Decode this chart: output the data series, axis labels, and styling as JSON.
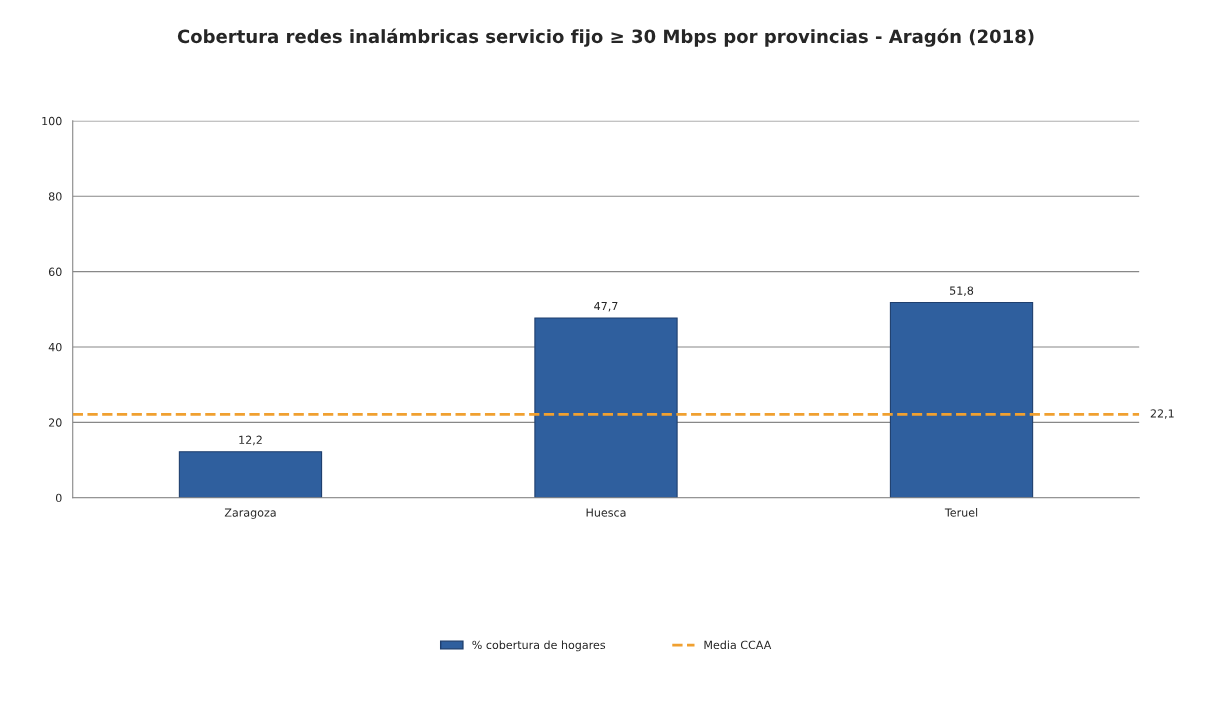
{
  "chart_data": {
    "type": "bar",
    "title": "Cobertura redes inalámbricas servicio fijo ≥ 30 Mbps por provincias - Aragón (2018)",
    "categories": [
      "Zaragoza",
      "Huesca",
      "Teruel"
    ],
    "series": [
      {
        "name": "% cobertura de hogares",
        "color": "#2f5f9e",
        "values": [
          12.2,
          47.7,
          51.8
        ],
        "value_labels": [
          "12,2",
          "47,7",
          "51,8"
        ]
      }
    ],
    "ref_lines": [
      {
        "axis": "y",
        "value": 22.1,
        "label": "Media CCAA",
        "color": "#f0a030",
        "line_style": "dashed"
      }
    ],
    "annotations": [
      "22,1"
    ],
    "ylim": [
      0,
      100
    ],
    "yticks": [
      0,
      20,
      40,
      60,
      80,
      100
    ],
    "grid": "y",
    "legend": "bottom"
  }
}
